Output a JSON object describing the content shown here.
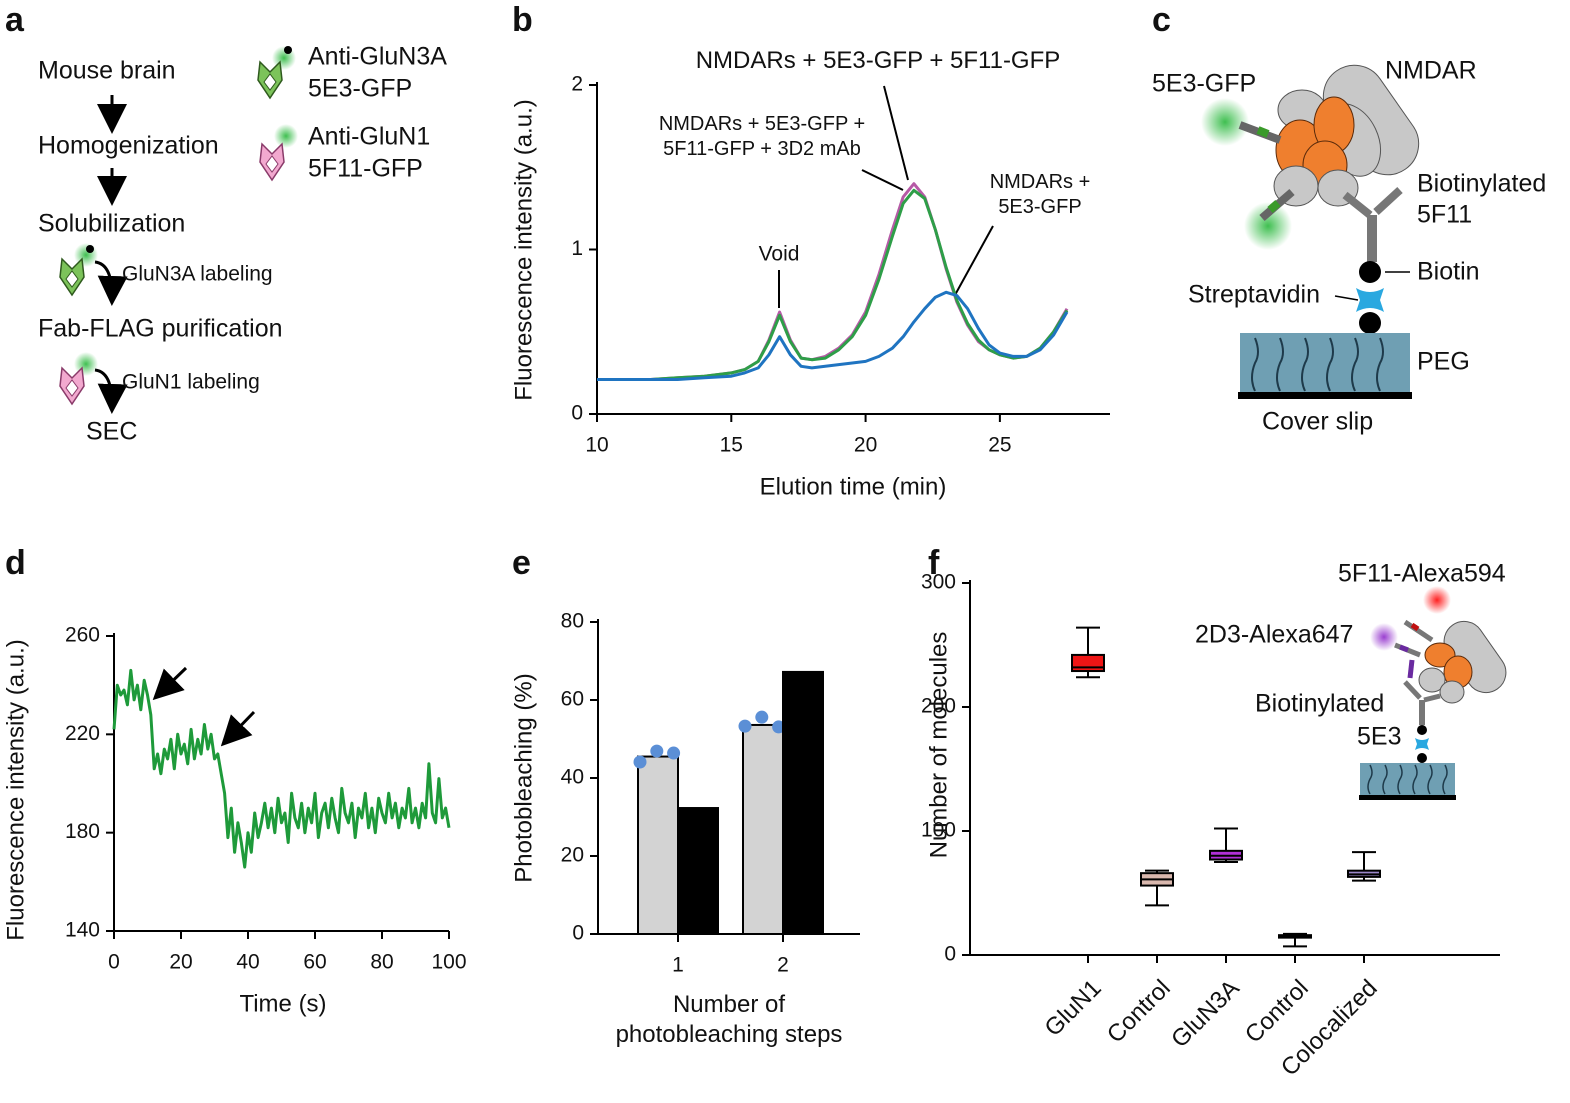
{
  "panel_labels": [
    "a",
    "b",
    "c",
    "d",
    "e",
    "f"
  ],
  "panel_a": {
    "steps": [
      "Mouse brain",
      "Homogenization",
      "Solubilization",
      "GluN3A labeling",
      "Fab-FLAG purification",
      "GluN1 labeling",
      "SEC"
    ],
    "legend": [
      "Anti-GluN3A",
      "5E3-GFP",
      "Anti-GluN1",
      "5F11-GFP"
    ]
  },
  "panel_c": {
    "labels": [
      "5E3-GFP",
      "NMDAR",
      "Biotinylated",
      "5F11",
      "Biotin",
      "Streptavidin",
      "PEG",
      "Cover slip"
    ]
  },
  "panel_f_inset": {
    "labels": [
      "5F11-Alexa594",
      "2D3-Alexa647",
      "Biotinylated",
      "5E3"
    ]
  },
  "chart_data": [
    {
      "type": "line",
      "x_label": "Elution time (min)",
      "y_label": "Fluorescence intensity (a.u.)",
      "annotations": [
        "Void"
      ],
      "x": [
        10,
        11,
        12,
        13,
        14,
        15,
        15.5,
        16,
        16.4,
        16.8,
        17.2,
        17.6,
        18,
        18.5,
        19,
        19.5,
        20,
        20.5,
        21,
        21.4,
        21.8,
        22.2,
        22.6,
        23,
        23.4,
        23.8,
        24.2,
        24.6,
        25,
        25.5,
        26,
        26.5,
        27,
        27.5
      ],
      "series": [
        {
          "name": "NMDARs + 5E3-GFP + 5F11-GFP + 3D2 mAb",
          "color": "#b65aa6",
          "values": [
            0.21,
            0.21,
            0.21,
            0.22,
            0.23,
            0.25,
            0.27,
            0.32,
            0.45,
            0.62,
            0.45,
            0.34,
            0.33,
            0.35,
            0.4,
            0.48,
            0.62,
            0.85,
            1.12,
            1.32,
            1.4,
            1.32,
            1.12,
            0.88,
            0.68,
            0.54,
            0.44,
            0.39,
            0.36,
            0.34,
            0.35,
            0.4,
            0.5,
            0.64
          ]
        },
        {
          "name": "NMDARs + 5E3-GFP + 5F11-GFP",
          "color": "#2e9e48",
          "values": [
            0.21,
            0.21,
            0.21,
            0.22,
            0.23,
            0.25,
            0.27,
            0.32,
            0.44,
            0.6,
            0.44,
            0.34,
            0.33,
            0.34,
            0.39,
            0.47,
            0.6,
            0.82,
            1.08,
            1.28,
            1.36,
            1.31,
            1.12,
            0.89,
            0.69,
            0.55,
            0.45,
            0.39,
            0.36,
            0.34,
            0.35,
            0.4,
            0.5,
            0.63
          ]
        },
        {
          "name": "NMDARs + 5E3-GFP",
          "color": "#1f74c1",
          "values": [
            0.21,
            0.21,
            0.21,
            0.21,
            0.22,
            0.23,
            0.25,
            0.28,
            0.36,
            0.47,
            0.36,
            0.29,
            0.28,
            0.29,
            0.3,
            0.31,
            0.32,
            0.35,
            0.4,
            0.47,
            0.56,
            0.64,
            0.71,
            0.74,
            0.72,
            0.64,
            0.52,
            0.42,
            0.37,
            0.35,
            0.35,
            0.39,
            0.48,
            0.62
          ]
        }
      ],
      "xlim": [
        10,
        29.1
      ],
      "ylim": [
        0,
        2
      ],
      "xticks": [
        10,
        15,
        20,
        25
      ],
      "yticks": [
        0,
        1,
        2
      ]
    },
    {
      "type": "line",
      "x_label": "Time (s)",
      "y_label": "Fluorescence intensity (a.u.)",
      "x": [
        0,
        1,
        2,
        3,
        4,
        5,
        6,
        7,
        8,
        9,
        10,
        11,
        12,
        13,
        14,
        15,
        16,
        17,
        18,
        19,
        20,
        21,
        22,
        23,
        24,
        25,
        26,
        27,
        28,
        29,
        30,
        31,
        32,
        33,
        34,
        35,
        36,
        37,
        38,
        39,
        40,
        41,
        42,
        43,
        44,
        45,
        46,
        47,
        48,
        49,
        50,
        51,
        52,
        53,
        54,
        55,
        56,
        57,
        58,
        59,
        60,
        61,
        62,
        63,
        64,
        65,
        66,
        67,
        68,
        69,
        70,
        71,
        72,
        73,
        74,
        75,
        76,
        77,
        78,
        79,
        80,
        81,
        82,
        83,
        84,
        85,
        86,
        87,
        88,
        89,
        90,
        91,
        92,
        93,
        94,
        95,
        96,
        97,
        98,
        99,
        100
      ],
      "series": [
        {
          "color": "#1e9a3a",
          "values": [
            222,
            240,
            236,
            238,
            232,
            246,
            234,
            240,
            230,
            242,
            236,
            228,
            206,
            212,
            204,
            214,
            210,
            218,
            206,
            220,
            212,
            216,
            208,
            222,
            210,
            218,
            212,
            224,
            214,
            220,
            210,
            212,
            204,
            196,
            178,
            190,
            172,
            184,
            176,
            166,
            180,
            172,
            188,
            178,
            184,
            192,
            182,
            190,
            180,
            194,
            184,
            188,
            176,
            196,
            186,
            182,
            192,
            180,
            190,
            184,
            196,
            178,
            188,
            192,
            182,
            194,
            186,
            180,
            198,
            188,
            184,
            192,
            178,
            190,
            186,
            196,
            182,
            190,
            180,
            194,
            188,
            184,
            196,
            186,
            192,
            182,
            190,
            186,
            198,
            184,
            190,
            182,
            192,
            186,
            208,
            188,
            184,
            202,
            186,
            190,
            182
          ]
        }
      ],
      "xlim": [
        0,
        100
      ],
      "ylim": [
        140,
        260
      ],
      "xticks": [
        0,
        20,
        40,
        60,
        80,
        100
      ],
      "yticks": [
        140,
        180,
        220,
        260
      ]
    },
    {
      "type": "bar",
      "x_label": "Number of photobleaching steps",
      "y_label": "Photobleaching (%)",
      "categories": [
        "1",
        "2"
      ],
      "series": [
        {
          "color": "#d3d3d3",
          "values": [
            45.5,
            53.6
          ],
          "points": [
            [
              44.1,
              46.9,
              46.4
            ],
            [
              53.3,
              55.6,
              53.1
            ]
          ],
          "point_color": "#5b8fd6"
        },
        {
          "color": "#000000",
          "values": [
            32.3,
            67.2
          ]
        }
      ],
      "ylim": [
        0,
        80
      ],
      "yticks": [
        0,
        20,
        40,
        60,
        80
      ]
    },
    {
      "type": "box",
      "y_label": "Number of molecules",
      "categories": [
        "GluN1",
        "Control",
        "GluN3A",
        "Control",
        "Colocalized"
      ],
      "colors": [
        "#ee1515",
        "#d9b8ae",
        "#b130d8",
        "#333333",
        "#9b87c9"
      ],
      "values": [
        {
          "min": 224,
          "q1": 229,
          "median": 232,
          "q3": 242,
          "max": 264
        },
        {
          "min": 40,
          "q1": 56,
          "median": 61,
          "q3": 66,
          "max": 68
        },
        {
          "min": 75,
          "q1": 77,
          "median": 80,
          "q3": 84,
          "max": 102
        },
        {
          "min": 7,
          "q1": 14,
          "median": 15,
          "q3": 16,
          "max": 17
        },
        {
          "min": 60,
          "q1": 63,
          "median": 65,
          "q3": 68,
          "max": 83
        }
      ],
      "ylim": [
        0,
        300
      ],
      "yticks": [
        0,
        100,
        200,
        300
      ]
    }
  ]
}
